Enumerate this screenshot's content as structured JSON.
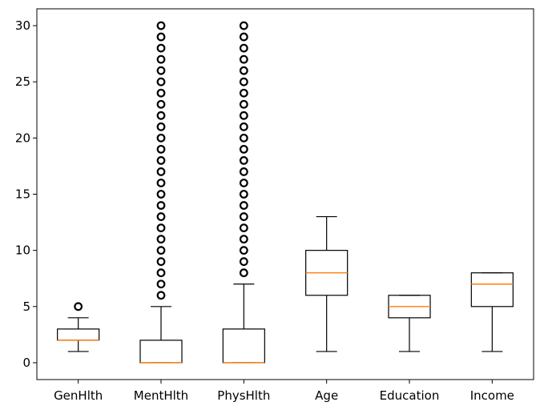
{
  "chart_data": {
    "type": "boxplot",
    "categories": [
      "GenHlth",
      "MentHlth",
      "PhysHlth",
      "Age",
      "Education",
      "Income"
    ],
    "ylim": [
      -1.5,
      31.5
    ],
    "yticks": [
      0,
      5,
      10,
      15,
      20,
      25,
      30
    ],
    "ytick_labels": [
      "0",
      "5",
      "10",
      "15",
      "20",
      "25",
      "30"
    ],
    "xlabel": "",
    "ylabel": "",
    "grid": false,
    "boxes": [
      {
        "name": "GenHlth",
        "whislo": 1,
        "q1": 2,
        "med": 2,
        "q3": 3,
        "whishi": 4,
        "fliers": [
          5
        ]
      },
      {
        "name": "MentHlth",
        "whislo": 0,
        "q1": 0,
        "med": 0,
        "q3": 2,
        "whishi": 5,
        "fliers": [
          6,
          7,
          8,
          9,
          10,
          11,
          12,
          13,
          14,
          15,
          16,
          17,
          18,
          19,
          20,
          21,
          22,
          23,
          24,
          25,
          26,
          27,
          28,
          29,
          30
        ]
      },
      {
        "name": "PhysHlth",
        "whislo": 0,
        "q1": 0,
        "med": 0,
        "q3": 3,
        "whishi": 7,
        "fliers": [
          8,
          9,
          10,
          11,
          12,
          13,
          14,
          15,
          16,
          17,
          18,
          19,
          20,
          21,
          22,
          23,
          24,
          25,
          26,
          27,
          28,
          29,
          30
        ]
      },
      {
        "name": "Age",
        "whislo": 1,
        "q1": 6,
        "med": 8,
        "q3": 10,
        "whishi": 13,
        "fliers": []
      },
      {
        "name": "Education",
        "whislo": 1,
        "q1": 4,
        "med": 5,
        "q3": 6,
        "whishi": 6,
        "fliers": []
      },
      {
        "name": "Income",
        "whislo": 1,
        "q1": 5,
        "med": 7,
        "q3": 8,
        "whishi": 8,
        "fliers": []
      }
    ],
    "colors": {
      "box": "#000000",
      "median": "#ff7f0e",
      "flier": "#000000",
      "axes": "#000000"
    }
  }
}
